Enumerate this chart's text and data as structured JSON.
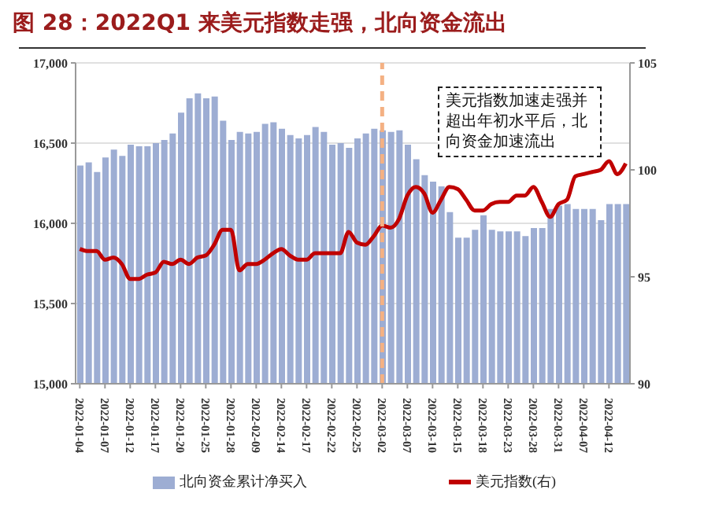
{
  "chart_data": {
    "type": "bar",
    "title": "图 28：2022Q1 来美元指数走强，北向资金流出",
    "categories": [
      "2022-01-04",
      null,
      null,
      "2022-01-07",
      null,
      null,
      "2022-01-12",
      null,
      null,
      "2022-01-17",
      null,
      null,
      "2022-01-20",
      null,
      null,
      "2022-01-25",
      null,
      null,
      "2022-01-28",
      null,
      null,
      "2022-02-09",
      null,
      null,
      "2022-02-14",
      null,
      null,
      "2022-02-17",
      null,
      null,
      "2022-02-22",
      null,
      null,
      "2022-02-25",
      null,
      null,
      "2022-03-02",
      null,
      null,
      "2022-03-07",
      null,
      null,
      "2022-03-10",
      null,
      null,
      "2022-03-15",
      null,
      null,
      "2022-03-18",
      null,
      null,
      "2022-03-23",
      null,
      null,
      "2022-03-28",
      null,
      null,
      "2022-03-31",
      null,
      null,
      "2022-04-07",
      null,
      null,
      "2022-04-12",
      null,
      null
    ],
    "series": [
      {
        "name": "北向资金累计净买入",
        "color": "#9dadd3",
        "values": [
          16360,
          16380,
          16320,
          16410,
          16460,
          16420,
          16490,
          16480,
          16480,
          16500,
          16520,
          16560,
          16690,
          16780,
          16810,
          16780,
          16790,
          16640,
          16520,
          16570,
          16560,
          16570,
          16620,
          16630,
          16590,
          16550,
          16530,
          16550,
          16600,
          16570,
          16490,
          16500,
          16470,
          16530,
          16560,
          16590,
          16580,
          16570,
          16580,
          16490,
          16400,
          16300,
          16260,
          16230,
          16070,
          15910,
          15910,
          15960,
          16050,
          15960,
          15950,
          15950,
          15950,
          15920,
          15970,
          15970,
          16090,
          16110,
          16120,
          16090,
          16090,
          16090,
          16020,
          16120,
          16120,
          16120
        ]
      },
      {
        "name": "美元指数(右)",
        "type": "line",
        "axis": "y2",
        "color": "#c00000",
        "values": [
          96.3,
          96.2,
          96.2,
          95.8,
          95.9,
          95.6,
          94.9,
          94.9,
          95.1,
          95.2,
          95.7,
          95.6,
          95.8,
          95.6,
          95.9,
          96.0,
          96.5,
          97.2,
          97.2,
          95.3,
          95.6,
          95.6,
          95.8,
          96.1,
          96.3,
          96.0,
          95.8,
          95.8,
          96.1,
          96.1,
          96.1,
          96.1,
          97.1,
          96.6,
          96.5,
          96.9,
          97.4,
          97.3,
          97.7,
          98.8,
          99.2,
          98.9,
          98.0,
          98.6,
          99.2,
          99.1,
          98.6,
          98.1,
          98.1,
          98.4,
          98.5,
          98.5,
          98.8,
          98.8,
          99.2,
          98.5,
          97.8,
          98.4,
          98.6,
          99.7,
          99.8,
          99.9,
          100.0,
          100.4,
          99.8,
          100.3
        ]
      }
    ],
    "ylim": [
      15000,
      17000
    ],
    "yticks": [
      {
        "value": 15000,
        "label": "15,000"
      },
      {
        "value": 15500,
        "label": "15,500"
      },
      {
        "value": 16000,
        "label": "16,000"
      },
      {
        "value": 16500,
        "label": "16,500"
      },
      {
        "value": 17000,
        "label": "17,000"
      }
    ],
    "y2lim": [
      90,
      105
    ],
    "y2ticks": [
      90,
      95,
      100,
      105
    ],
    "grid": "y",
    "legend": "bottom",
    "ref_lines": [
      {
        "axis": "x",
        "value": "2022-03-02",
        "color": "#f4b183",
        "line_style": "dashed"
      }
    ],
    "annotations": [
      "美元指数加速走强并超出年初水平后，北向资金加速流出"
    ]
  }
}
